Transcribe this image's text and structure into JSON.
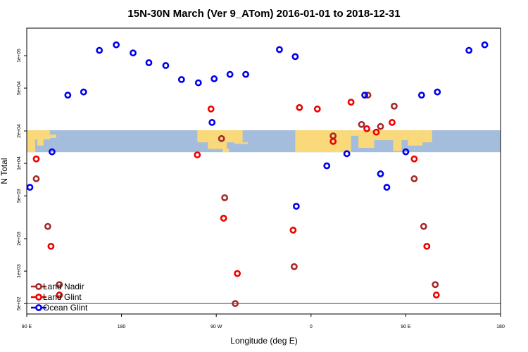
{
  "chart_data": {
    "type": "scatter",
    "title": "15N-30N March (Ver 9_ATom)   2016-01-01 to 2018-12-31",
    "xlabel": "Longitude (deg E)",
    "ylabel": "N Total",
    "x_scale": "linear",
    "y_scale": "log",
    "xlim": [
      90,
      540
    ],
    "ylim": [
      400,
      180000
    ],
    "x_ticks": [
      {
        "value": 90,
        "label": "90 E"
      },
      {
        "value": 180,
        "label": "180"
      },
      {
        "value": 270,
        "label": "90 W"
      },
      {
        "value": 360,
        "label": "0"
      },
      {
        "value": 450,
        "label": "90 E"
      },
      {
        "value": 540,
        "label": "180"
      }
    ],
    "y_ticks": [
      {
        "value": 500,
        "label": "5e+02"
      },
      {
        "value": 1000,
        "label": "1e+03"
      },
      {
        "value": 2000,
        "label": "2e+03"
      },
      {
        "value": 5000,
        "label": "5e+03"
      },
      {
        "value": 10000,
        "label": "1e+04"
      },
      {
        "value": 20000,
        "label": "2e+04"
      },
      {
        "value": 50000,
        "label": "5e+04"
      },
      {
        "value": 100000,
        "label": "1e+05"
      }
    ],
    "map_band_y_range": [
      12700,
      20300
    ],
    "reference_line_y": 500,
    "legend_position": "bottom-left",
    "series": [
      {
        "name": "Land Nadir",
        "color": "#a52a2a",
        "points": [
          [
            99,
            7200
          ],
          [
            110,
            2600
          ],
          [
            121,
            750
          ],
          [
            275,
            17000
          ],
          [
            278,
            4800
          ],
          [
            288,
            500
          ],
          [
            344,
            1100
          ],
          [
            381,
            18000
          ],
          [
            408,
            23000
          ],
          [
            414,
            43000
          ],
          [
            426,
            22000
          ],
          [
            439,
            34000
          ],
          [
            458,
            7200
          ],
          [
            467,
            2600
          ],
          [
            478,
            750
          ]
        ]
      },
      {
        "name": "Land Glint",
        "color": "#ee0000",
        "points": [
          [
            99,
            11000
          ],
          [
            113,
            1700
          ],
          [
            121,
            600
          ],
          [
            252,
            12000
          ],
          [
            265,
            32000
          ],
          [
            277,
            3100
          ],
          [
            290,
            950
          ],
          [
            343,
            2400
          ],
          [
            349,
            33000
          ],
          [
            366,
            32000
          ],
          [
            381,
            16000
          ],
          [
            398,
            37000
          ],
          [
            413,
            21000
          ],
          [
            422,
            19500
          ],
          [
            437,
            24000
          ],
          [
            458,
            11000
          ],
          [
            470,
            1700
          ],
          [
            479,
            600
          ]
        ]
      },
      {
        "name": "Ocean Glint",
        "color": "#0000ee",
        "points": [
          [
            93,
            6000
          ],
          [
            114,
            12800
          ],
          [
            129,
            43000
          ],
          [
            144,
            46000
          ],
          [
            159,
            112000
          ],
          [
            175,
            126000
          ],
          [
            191,
            106000
          ],
          [
            206,
            86000
          ],
          [
            222,
            81000
          ],
          [
            237,
            60000
          ],
          [
            253,
            56000
          ],
          [
            266,
            24000
          ],
          [
            268,
            61000
          ],
          [
            283,
            67000
          ],
          [
            298,
            67000
          ],
          [
            330,
            114000
          ],
          [
            345,
            98000
          ],
          [
            346,
            4000
          ],
          [
            375,
            9500
          ],
          [
            394,
            12300
          ],
          [
            411,
            43000
          ],
          [
            426,
            8000
          ],
          [
            432,
            6000
          ],
          [
            450,
            12800
          ],
          [
            465,
            43000
          ],
          [
            480,
            46000
          ],
          [
            510,
            112000
          ],
          [
            525,
            126000
          ]
        ]
      }
    ]
  }
}
